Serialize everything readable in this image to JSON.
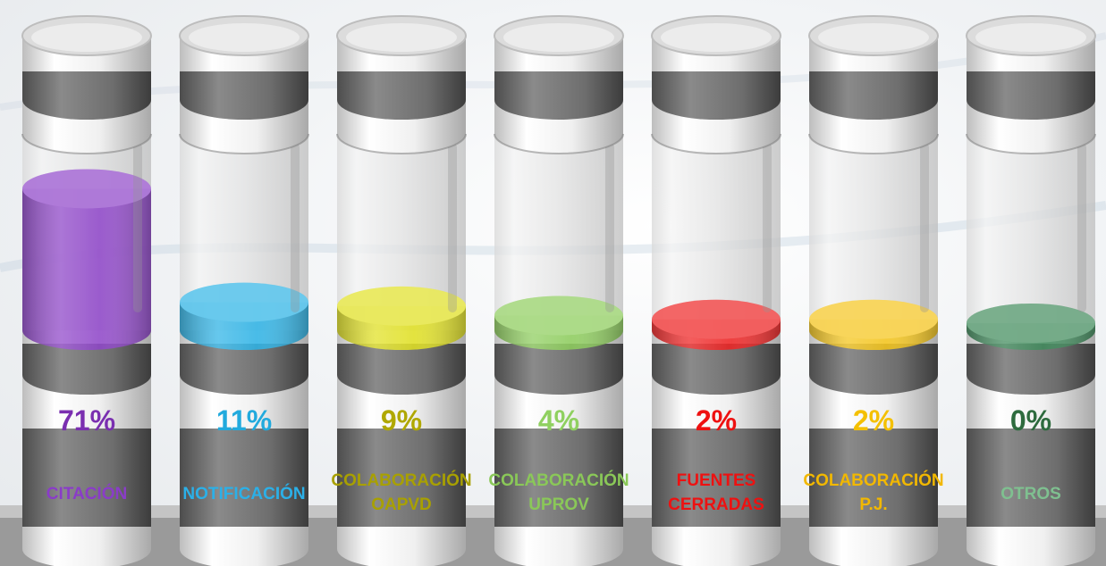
{
  "chart_data": {
    "type": "bar",
    "style": "glass cylinders",
    "categories": [
      "CITACIÓN",
      "NOTIFICACIÓN",
      "COLABORACIÓN\nOAPVD",
      "COLABORACIÓN\nUPROV",
      "FUENTES\nCERRADAS",
      "COLABORACIÓN\nP.J.",
      "OTROS"
    ],
    "values": [
      71,
      11,
      9,
      4,
      2,
      2,
      0
    ],
    "value_labels": [
      "71%",
      "11%",
      "9%",
      "4%",
      "2%",
      "2%",
      "0%"
    ],
    "unit": "%",
    "ylim": [
      0,
      100
    ],
    "colors": [
      "#8e44c9",
      "#2bb3e6",
      "#e0e020",
      "#8ccc5a",
      "#ee2020",
      "#f5c418",
      "#3e8a5a"
    ],
    "label_colors": [
      "#7a2fb0",
      "#22aadd",
      "#b0a800",
      "#8fd060",
      "#ee1111",
      "#f4c000",
      "#2e6b3e"
    ],
    "category_label_colors": [
      "#8a3cc8",
      "#2bb0e8",
      "#a8a000",
      "#8ac858",
      "#ee1111",
      "#f2b800",
      "#7fc090"
    ]
  }
}
